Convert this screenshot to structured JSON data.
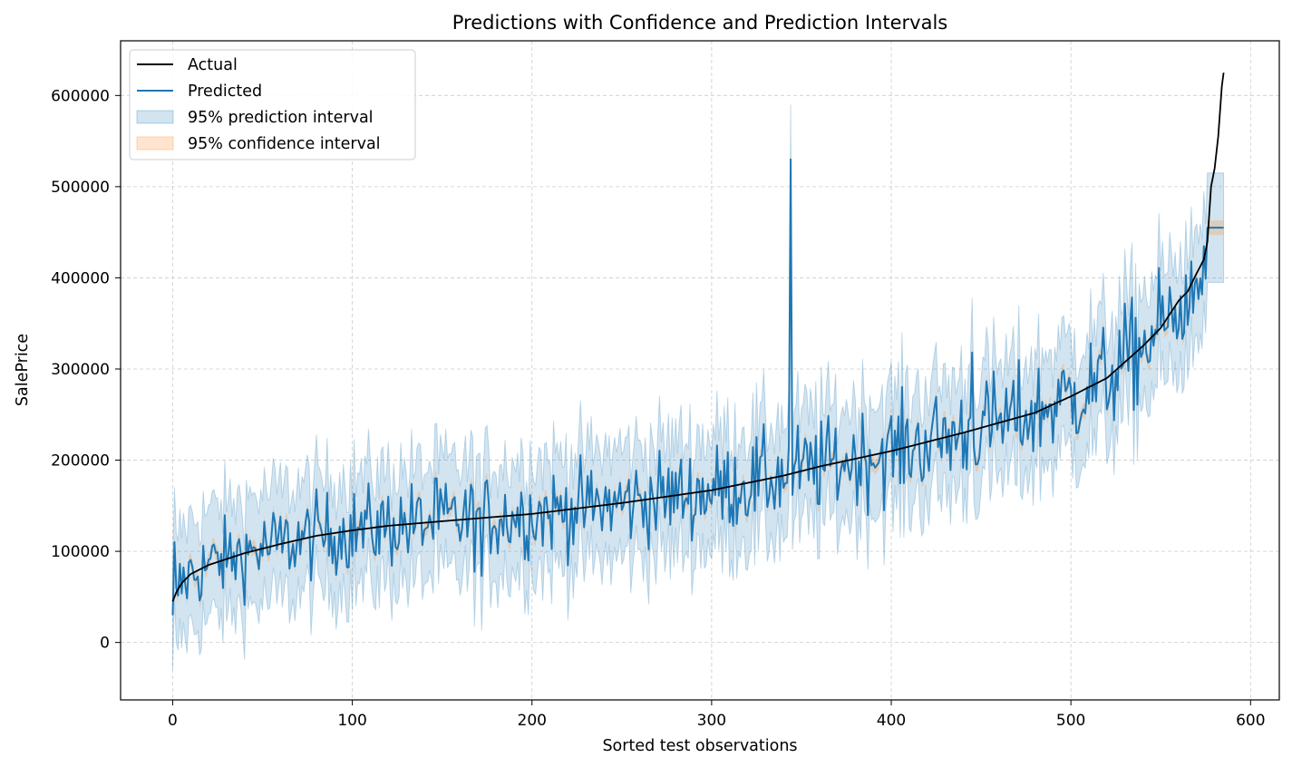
{
  "chart_data": {
    "type": "line",
    "title": "Predictions with Confidence and Prediction Intervals",
    "xlabel": "Sorted test observations",
    "ylabel": "SalePrice",
    "xlim": [
      -29,
      616
    ],
    "ylim": [
      -63000,
      660000
    ],
    "grid": true,
    "legend_position": "top-left",
    "xticks": [
      0,
      100,
      200,
      300,
      400,
      500,
      600
    ],
    "xtick_labels": [
      "0",
      "100",
      "200",
      "300",
      "400",
      "500",
      "600"
    ],
    "yticks": [
      0,
      100000,
      200000,
      300000,
      400000,
      500000,
      600000
    ],
    "ytick_labels": [
      "0",
      "100000",
      "200000",
      "300000",
      "400000",
      "500000",
      "600000"
    ],
    "n_points": 586,
    "prediction_interval_halfwidth": 60000,
    "confidence_interval_halfwidth": 8000,
    "actual_anchors": {
      "x": [
        0,
        2,
        5,
        10,
        20,
        40,
        60,
        80,
        100,
        120,
        150,
        200,
        250,
        300,
        340,
        360,
        400,
        440,
        480,
        500,
        520,
        540,
        550,
        560,
        565,
        570,
        574,
        576,
        578,
        580,
        582,
        584,
        585
      ],
      "y": [
        45000,
        55000,
        65000,
        75000,
        85000,
        98000,
        108000,
        117000,
        123000,
        128000,
        133000,
        141000,
        153000,
        167000,
        183000,
        193000,
        210000,
        230000,
        252000,
        270000,
        290000,
        325000,
        345000,
        375000,
        385000,
        405000,
        420000,
        440000,
        500000,
        520000,
        555000,
        610000,
        625000
      ]
    },
    "predicted_highlights": [
      {
        "x": 344,
        "y": 530000
      },
      {
        "x": 445,
        "y": 318000
      },
      {
        "x": 146,
        "y": 180000
      },
      {
        "x": 172,
        "y": 73000
      }
    ],
    "series": [
      {
        "name": "Actual",
        "color": "#000000",
        "style": "line"
      },
      {
        "name": "Predicted",
        "color": "#1f77b4",
        "style": "line"
      },
      {
        "name": "95% prediction interval",
        "color": "#1f77b4",
        "style": "band",
        "alpha": 0.2
      },
      {
        "name": "95% confidence interval",
        "color": "#ff7f0e",
        "style": "band",
        "alpha": 0.2
      }
    ]
  }
}
